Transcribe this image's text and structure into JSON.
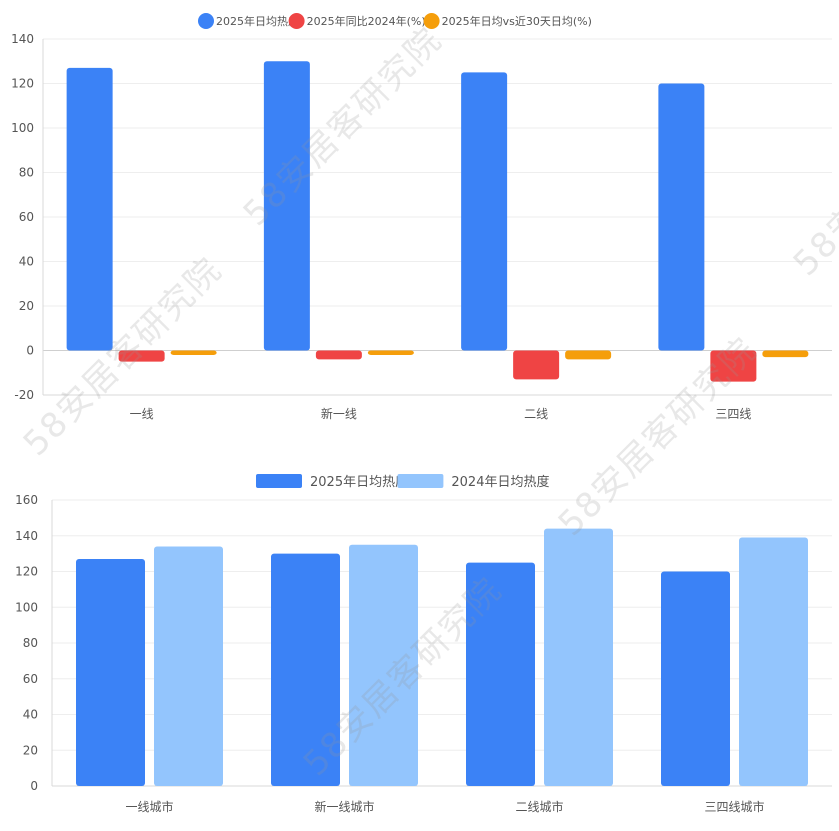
{
  "watermark": "58安居客研究院",
  "chart_data": [
    {
      "type": "bar",
      "categories": [
        "一线",
        "新一线",
        "二线",
        "三四线"
      ],
      "series": [
        {
          "name": "2025年日均热度",
          "color": "#3b82f6",
          "values": [
            127,
            130,
            125,
            120
          ]
        },
        {
          "name": "2025年同比2024年(%)",
          "color": "#ef4444",
          "values": [
            -5,
            -4,
            -13,
            -14
          ]
        },
        {
          "name": "2025年日均vs近30天日均(%)",
          "color": "#f59e0b",
          "values": [
            -2,
            -2,
            -4,
            -3
          ]
        }
      ],
      "ylim": [
        -20,
        140
      ],
      "yticks": [
        -20,
        0,
        20,
        40,
        60,
        80,
        100,
        120,
        140
      ],
      "legend_position": "top-center",
      "grid": true
    },
    {
      "type": "bar",
      "categories": [
        "一线城市",
        "新一线城市",
        "二线城市",
        "三四线城市"
      ],
      "series": [
        {
          "name": "2025年日均热度",
          "color": "#3b82f6",
          "values": [
            127,
            130,
            125,
            120
          ]
        },
        {
          "name": "2024年日均热度",
          "color": "#93c5fd",
          "values": [
            134,
            135,
            144,
            139
          ]
        }
      ],
      "ylim": [
        0,
        160
      ],
      "yticks": [
        0,
        20,
        40,
        60,
        80,
        100,
        120,
        140,
        160
      ],
      "legend_position": "top-center",
      "grid": true
    }
  ]
}
